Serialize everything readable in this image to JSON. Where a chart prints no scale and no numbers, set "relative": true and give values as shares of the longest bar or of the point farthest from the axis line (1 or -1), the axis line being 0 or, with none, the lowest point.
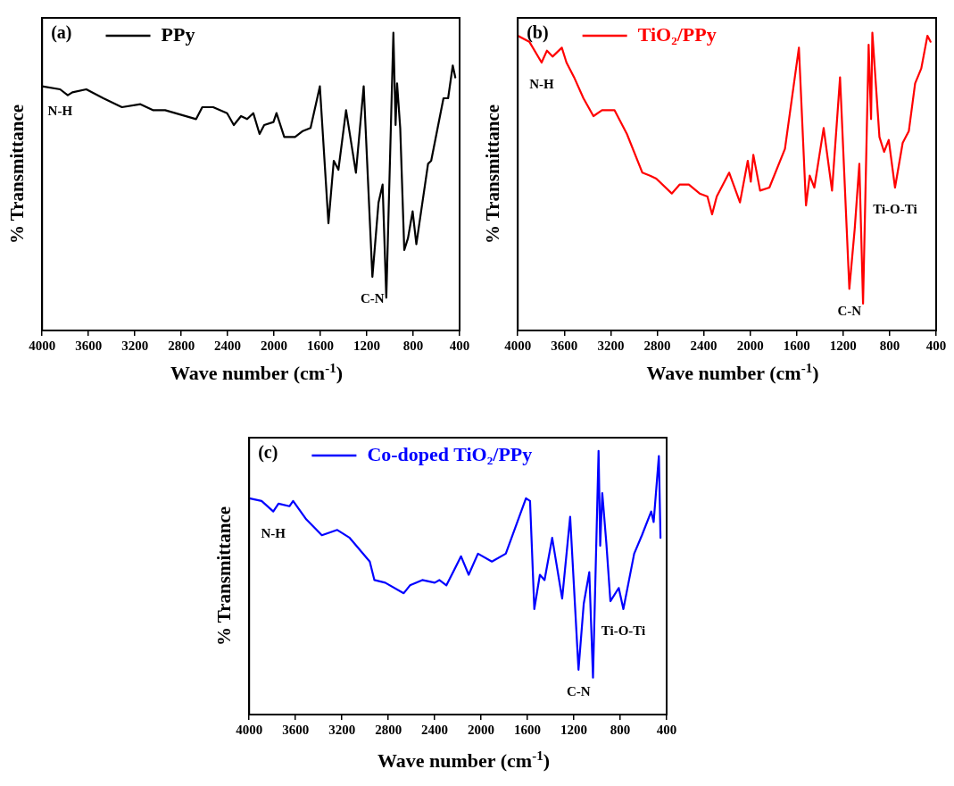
{
  "chart_data": [
    {
      "type": "line",
      "xlabel": "Wave number (cm$^{-1}$)",
      "ylabel": "% Transmittance",
      "relative": true,
      "xlim": [
        4000,
        400
      ],
      "xticks": [
        4000,
        3600,
        3200,
        2800,
        2400,
        2000,
        1600,
        1200,
        800,
        400
      ],
      "legend": "top left",
      "grid": false,
      "marker": "none",
      "line_style": "solid",
      "annotations": [
        "(a)",
        {
          "text": "N-H",
          "x": 3845,
          "y": 0.81
        },
        {
          "text": "C-N",
          "x": 1152,
          "y": 0.18
        }
      ],
      "series": [
        {
          "name": "PPy",
          "color": "#000000",
          "x": [
            4000,
            3845,
            3779,
            3739,
            3619,
            3472,
            3312,
            3152,
            3045,
            2939,
            2672,
            2619,
            2525,
            2405,
            2347,
            2285,
            2232,
            2179,
            2125,
            2085,
            2005,
            1979,
            1912,
            1819,
            1752,
            1685,
            1605,
            1531,
            1485,
            1445,
            1379,
            1294,
            1227,
            1152,
            1099,
            1064,
            1032,
            971,
            952,
            939,
            912,
            877,
            845,
            805,
            773,
            672,
            645,
            539,
            499,
            459,
            437
          ],
          "values": [
            0.82,
            0.81,
            0.79,
            0.8,
            0.81,
            0.78,
            0.75,
            0.76,
            0.74,
            0.74,
            0.71,
            0.75,
            0.75,
            0.73,
            0.69,
            0.72,
            0.71,
            0.73,
            0.66,
            0.69,
            0.7,
            0.73,
            0.65,
            0.65,
            0.67,
            0.68,
            0.82,
            0.36,
            0.57,
            0.54,
            0.74,
            0.53,
            0.82,
            0.18,
            0.43,
            0.49,
            0.11,
            1.0,
            0.69,
            0.83,
            0.68,
            0.27,
            0.31,
            0.4,
            0.29,
            0.56,
            0.57,
            0.78,
            0.78,
            0.89,
            0.85
          ]
        }
      ]
    },
    {
      "type": "line",
      "xlabel": "Wave number (cm$^{-1}$)",
      "ylabel": "% Transmittance",
      "relative": true,
      "xlim": [
        4000,
        400
      ],
      "xticks": [
        4000,
        3600,
        3200,
        2800,
        2400,
        2000,
        1600,
        1200,
        800,
        400
      ],
      "legend": "top left",
      "grid": false,
      "marker": "none",
      "line_style": "solid",
      "annotations": [
        "(b)",
        {
          "text": "N-H",
          "x": 3795,
          "y": 0.9
        },
        {
          "text": "C-N",
          "x": 1147,
          "y": 0.14
        },
        {
          "text": "Ti-O-Ti",
          "x": 754,
          "y": 0.48
        }
      ],
      "series": [
        {
          "name": "TiO₂/PPy",
          "color": "#ff0000",
          "x": [
            4000,
            3901,
            3795,
            3749,
            3701,
            3621,
            3581,
            3515,
            3435,
            3349,
            3275,
            3168,
            3061,
            2928,
            2861,
            2808,
            2675,
            2608,
            2528,
            2435,
            2368,
            2328,
            2288,
            2181,
            2088,
            2021,
            1995,
            1973,
            1915,
            1835,
            1701,
            1581,
            1520,
            1488,
            1448,
            1368,
            1296,
            1227,
            1147,
            1101,
            1061,
            1029,
            981,
            960,
            949,
            888,
            848,
            808,
            754,
            688,
            635,
            581,
            528,
            475,
            448
          ],
          "values": [
            0.99,
            0.97,
            0.9,
            0.94,
            0.92,
            0.95,
            0.9,
            0.85,
            0.78,
            0.72,
            0.74,
            0.74,
            0.66,
            0.53,
            0.52,
            0.51,
            0.46,
            0.49,
            0.49,
            0.46,
            0.45,
            0.39,
            0.45,
            0.53,
            0.43,
            0.57,
            0.5,
            0.59,
            0.47,
            0.48,
            0.61,
            0.95,
            0.42,
            0.52,
            0.48,
            0.68,
            0.47,
            0.85,
            0.14,
            0.34,
            0.56,
            0.09,
            0.96,
            0.71,
            1.0,
            0.65,
            0.6,
            0.64,
            0.48,
            0.63,
            0.67,
            0.83,
            0.88,
            0.99,
            0.97
          ]
        }
      ]
    },
    {
      "type": "line",
      "xlabel": "Wave number (cm$^{-1}$)",
      "ylabel": "% Transmittance",
      "relative": true,
      "xlim": [
        4000,
        400
      ],
      "xticks": [
        4000,
        3600,
        3200,
        2800,
        2400,
        2000,
        1600,
        1200,
        800,
        400
      ],
      "legend": "top left",
      "grid": false,
      "marker": "none",
      "line_style": "solid",
      "annotations": [
        "(c)",
        {
          "text": "N-H",
          "x": 3792,
          "y": 0.77
        },
        {
          "text": "C-N",
          "x": 1160,
          "y": 0.17
        },
        {
          "text": "Ti-O-Ti",
          "x": 773,
          "y": 0.4
        }
      ],
      "series": [
        {
          "name": "Co-doped TiO₂/PPy",
          "color": "#0000ff",
          "x": [
            4000,
            3893,
            3792,
            3747,
            3653,
            3621,
            3573,
            3507,
            3373,
            3240,
            3133,
            2960,
            2920,
            2827,
            2667,
            2613,
            2507,
            2400,
            2360,
            2299,
            2173,
            2107,
            2027,
            1907,
            1787,
            1613,
            1578,
            1541,
            1493,
            1453,
            1387,
            1301,
            1232,
            1160,
            1115,
            1067,
            1035,
            987,
            973,
            955,
            920,
            885,
            813,
            773,
            680,
            613,
            533,
            512,
            485,
            467,
            453
          ],
          "values": [
            0.82,
            0.81,
            0.77,
            0.8,
            0.79,
            0.81,
            0.78,
            0.74,
            0.68,
            0.7,
            0.67,
            0.58,
            0.51,
            0.5,
            0.46,
            0.49,
            0.51,
            0.5,
            0.51,
            0.49,
            0.6,
            0.53,
            0.61,
            0.58,
            0.61,
            0.82,
            0.81,
            0.4,
            0.53,
            0.51,
            0.67,
            0.44,
            0.75,
            0.17,
            0.42,
            0.54,
            0.14,
            1.0,
            0.64,
            0.84,
            0.65,
            0.43,
            0.48,
            0.4,
            0.61,
            0.68,
            0.77,
            0.73,
            0.88,
            0.98,
            0.67
          ]
        }
      ]
    }
  ]
}
